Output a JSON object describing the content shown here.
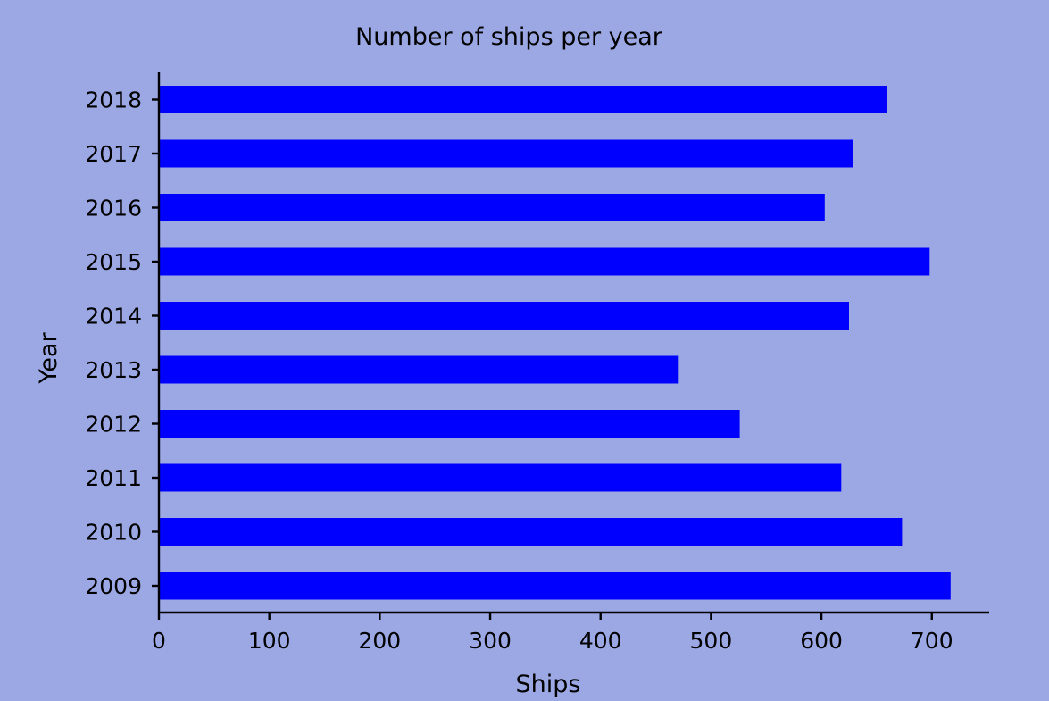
{
  "chart_data": {
    "type": "bar",
    "orientation": "horizontal",
    "title": "Number of ships per year",
    "xlabel": "Ships",
    "ylabel": "Year",
    "categories": [
      "2009",
      "2010",
      "2011",
      "2012",
      "2013",
      "2014",
      "2015",
      "2016",
      "2017",
      "2018"
    ],
    "values": [
      717,
      673,
      618,
      526,
      470,
      625,
      698,
      603,
      629,
      659
    ],
    "xlim": [
      0,
      750
    ],
    "xticks": [
      0,
      100,
      200,
      300,
      400,
      500,
      600,
      700
    ],
    "grid": false,
    "legend": "none",
    "bar_color": "#0000ff",
    "background_color": "#9ba8e3"
  }
}
